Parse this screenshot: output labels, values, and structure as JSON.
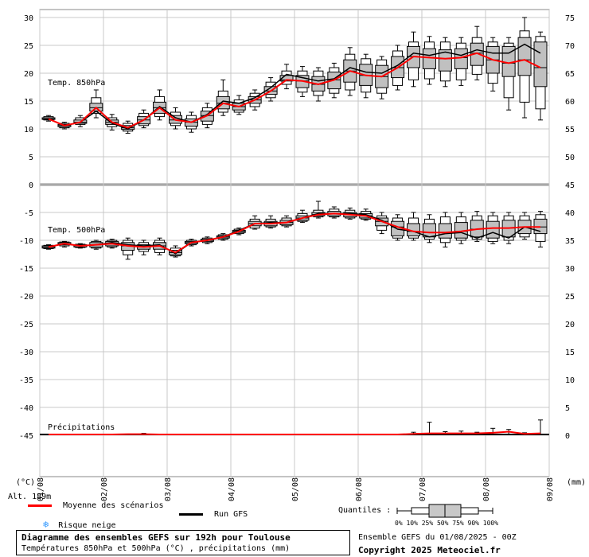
{
  "chart_data": {
    "type": "ensemble boxplot",
    "x_dates": [
      "01/08",
      "02/08",
      "03/08",
      "04/08",
      "05/08",
      "06/08",
      "07/08",
      "08/08",
      "09/08"
    ],
    "left_unit": "(°C)",
    "right_unit": "(mm)",
    "left_ticks": [
      "30",
      "25",
      "20",
      "15",
      "10",
      "5",
      "0",
      "-5",
      "-10",
      "-15",
      "-20",
      "-25",
      "-30",
      "-35",
      "-40",
      "-45"
    ],
    "right_ticks_temp850": [
      "75",
      "70",
      "65",
      "60",
      "55",
      "50",
      "45"
    ],
    "right_ticks_500": [
      "40",
      "35",
      "30",
      "25",
      "20",
      "15",
      "10",
      "5",
      "0"
    ],
    "panel_labels": [
      "Temp. 850hPa",
      "Temp. 500hPa",
      "Précipitations"
    ],
    "t850": {
      "mean": [
        11.8,
        10.6,
        11.2,
        13.8,
        11.2,
        10.2,
        11.6,
        13.8,
        11.6,
        11.2,
        12.4,
        14.6,
        14.0,
        15.2,
        16.8,
        18.8,
        18.6,
        18.0,
        18.8,
        20.4,
        19.6,
        19.4,
        21.0,
        23.0,
        22.8,
        22.6,
        22.8,
        23.6,
        22.4,
        21.8,
        22.4,
        21.0
      ],
      "gfs": [
        11.8,
        10.6,
        11.2,
        13.2,
        11.0,
        10.0,
        11.6,
        14.0,
        12.0,
        11.2,
        12.6,
        15.0,
        14.6,
        15.6,
        17.4,
        19.8,
        19.2,
        18.6,
        19.0,
        21.0,
        20.2,
        20.0,
        21.4,
        23.6,
        23.2,
        23.8,
        23.2,
        24.2,
        23.6,
        23.6,
        25.2,
        23.6
      ],
      "p0": [
        11.4,
        10.0,
        10.4,
        12.0,
        9.8,
        9.2,
        10.2,
        11.6,
        10.0,
        9.4,
        10.2,
        12.4,
        12.6,
        13.4,
        15.0,
        17.2,
        15.8,
        15.0,
        15.6,
        16.0,
        15.6,
        15.4,
        17.0,
        17.6,
        18.0,
        17.6,
        17.8,
        18.8,
        16.8,
        13.4,
        12.0,
        11.6
      ],
      "p10": [
        11.6,
        10.2,
        10.8,
        12.8,
        10.4,
        9.6,
        10.6,
        12.2,
        10.6,
        10.0,
        10.8,
        13.0,
        13.0,
        14.0,
        15.6,
        18.0,
        16.6,
        16.0,
        16.4,
        17.0,
        16.6,
        16.4,
        17.8,
        18.8,
        19.0,
        18.6,
        18.8,
        19.8,
        18.2,
        15.6,
        14.8,
        13.6
      ],
      "p25": [
        11.7,
        10.4,
        11.0,
        13.2,
        10.8,
        9.9,
        10.9,
        12.8,
        11.0,
        10.5,
        11.4,
        13.6,
        13.4,
        14.6,
        16.2,
        18.6,
        17.4,
        16.8,
        17.2,
        18.4,
        17.8,
        17.4,
        19.2,
        21.0,
        20.8,
        20.4,
        20.8,
        21.4,
        20.0,
        19.4,
        19.6,
        17.6
      ],
      "p50": [
        11.8,
        10.6,
        11.2,
        13.8,
        11.2,
        10.2,
        11.6,
        13.8,
        11.6,
        11.2,
        12.4,
        14.6,
        14.0,
        15.2,
        16.8,
        18.8,
        18.6,
        18.0,
        18.8,
        20.4,
        19.6,
        19.4,
        21.0,
        23.0,
        22.8,
        22.6,
        22.8,
        23.6,
        22.4,
        21.8,
        22.4,
        21.0
      ],
      "p75": [
        12.0,
        10.8,
        11.6,
        14.6,
        11.6,
        10.6,
        12.2,
        14.8,
        12.4,
        11.8,
        13.2,
        15.8,
        14.6,
        15.8,
        17.6,
        19.6,
        19.6,
        19.4,
        20.2,
        22.4,
        21.6,
        21.4,
        23.0,
        24.8,
        24.4,
        24.2,
        24.4,
        25.4,
        24.8,
        24.8,
        26.4,
        25.6
      ],
      "p90": [
        12.2,
        11.0,
        12.0,
        15.6,
        12.0,
        11.0,
        12.8,
        15.8,
        13.0,
        12.4,
        13.8,
        16.8,
        15.2,
        16.4,
        18.4,
        20.4,
        20.4,
        20.4,
        21.0,
        23.4,
        22.6,
        22.4,
        24.0,
        25.6,
        25.6,
        25.6,
        25.4,
        26.4,
        25.6,
        25.4,
        27.6,
        26.6
      ],
      "p100": [
        12.4,
        11.2,
        12.4,
        17.0,
        12.6,
        11.4,
        13.4,
        17.0,
        13.8,
        13.0,
        14.6,
        18.8,
        16.0,
        17.0,
        19.2,
        21.6,
        21.2,
        21.0,
        21.8,
        24.6,
        23.4,
        23.0,
        25.0,
        27.4,
        26.6,
        26.4,
        26.4,
        28.4,
        26.4,
        26.4,
        30.0,
        27.4
      ]
    },
    "t500": {
      "mean": [
        -11.2,
        -10.6,
        -11.0,
        -10.8,
        -10.6,
        -11.0,
        -11.2,
        -11.0,
        -12.2,
        -10.4,
        -10.0,
        -9.4,
        -8.4,
        -7.0,
        -7.0,
        -6.8,
        -6.0,
        -5.4,
        -5.2,
        -5.4,
        -5.6,
        -6.6,
        -7.6,
        -8.4,
        -8.6,
        -8.6,
        -8.4,
        -8.0,
        -7.8,
        -7.8,
        -7.6,
        -7.6
      ],
      "gfs": [
        -11.2,
        -10.6,
        -11.0,
        -10.8,
        -10.4,
        -10.8,
        -11.0,
        -10.8,
        -12.4,
        -10.4,
        -10.0,
        -9.4,
        -8.2,
        -7.0,
        -6.8,
        -6.8,
        -6.0,
        -5.2,
        -5.2,
        -5.2,
        -5.4,
        -6.4,
        -8.0,
        -8.4,
        -9.4,
        -8.8,
        -8.6,
        -9.6,
        -8.6,
        -9.6,
        -7.6,
        -8.4
      ],
      "p0": [
        -11.6,
        -11.2,
        -11.4,
        -11.6,
        -11.4,
        -13.4,
        -12.6,
        -12.6,
        -13.0,
        -11.0,
        -10.6,
        -10.0,
        -9.0,
        -8.0,
        -7.8,
        -7.6,
        -6.8,
        -6.0,
        -6.0,
        -6.2,
        -6.4,
        -8.8,
        -10.0,
        -10.0,
        -10.4,
        -11.2,
        -10.6,
        -10.2,
        -10.6,
        -10.6,
        -9.8,
        -11.2
      ],
      "p10": [
        -11.5,
        -11.0,
        -11.3,
        -11.4,
        -11.2,
        -12.6,
        -12.0,
        -12.2,
        -12.8,
        -10.8,
        -10.4,
        -9.8,
        -8.8,
        -7.8,
        -7.6,
        -7.4,
        -6.6,
        -5.8,
        -5.8,
        -6.0,
        -6.2,
        -8.2,
        -9.6,
        -9.6,
        -9.8,
        -10.4,
        -10.0,
        -9.8,
        -10.2,
        -10.0,
        -9.4,
        -10.2
      ],
      "p25": [
        -11.4,
        -10.8,
        -11.2,
        -11.2,
        -11.0,
        -11.8,
        -11.6,
        -11.6,
        -12.6,
        -10.6,
        -10.2,
        -9.6,
        -8.6,
        -7.4,
        -7.4,
        -7.2,
        -6.4,
        -5.6,
        -5.6,
        -5.8,
        -6.0,
        -7.4,
        -9.2,
        -9.2,
        -9.4,
        -9.6,
        -9.6,
        -9.4,
        -9.6,
        -9.4,
        -8.8,
        -8.8
      ],
      "p50": [
        -11.2,
        -10.6,
        -11.0,
        -10.8,
        -10.6,
        -11.0,
        -11.2,
        -11.0,
        -12.2,
        -10.4,
        -10.0,
        -9.4,
        -8.4,
        -7.0,
        -7.0,
        -6.8,
        -6.0,
        -5.4,
        -5.2,
        -5.4,
        -5.6,
        -6.6,
        -7.6,
        -8.4,
        -8.6,
        -8.6,
        -8.4,
        -8.0,
        -7.8,
        -7.8,
        -7.6,
        -7.6
      ],
      "p75": [
        -11.0,
        -10.4,
        -10.8,
        -10.4,
        -10.2,
        -10.4,
        -10.8,
        -10.4,
        -11.8,
        -10.2,
        -9.8,
        -9.2,
        -8.2,
        -6.6,
        -6.6,
        -6.4,
        -5.6,
        -5.0,
        -4.8,
        -5.0,
        -5.2,
        -6.0,
        -6.6,
        -7.0,
        -7.0,
        -7.0,
        -6.8,
        -6.4,
        -6.6,
        -6.4,
        -6.4,
        -6.2
      ],
      "p90": [
        -10.9,
        -10.3,
        -10.7,
        -10.2,
        -10.0,
        -10.0,
        -10.4,
        -10.0,
        -11.4,
        -10.0,
        -9.6,
        -9.0,
        -8.0,
        -6.2,
        -6.2,
        -6.0,
        -5.2,
        -4.6,
        -4.4,
        -4.6,
        -4.8,
        -5.6,
        -6.0,
        -6.0,
        -6.2,
        -5.8,
        -5.8,
        -5.6,
        -5.6,
        -5.6,
        -5.6,
        -5.4
      ],
      "p100": [
        -10.8,
        -10.2,
        -10.6,
        -10.0,
        -9.8,
        -9.6,
        -10.0,
        -9.6,
        -11.0,
        -9.8,
        -9.4,
        -8.8,
        -7.8,
        -5.6,
        -5.6,
        -5.6,
        -4.6,
        -3.0,
        -4.0,
        -4.2,
        -4.4,
        -5.0,
        -5.4,
        -5.0,
        -5.4,
        -5.0,
        -5.0,
        -4.8,
        -5.0,
        -5.0,
        -5.0,
        -4.8
      ]
    },
    "precip_mm": {
      "mean": [
        0,
        0,
        0,
        0,
        0,
        0.05,
        0.05,
        0,
        0,
        0,
        0,
        0,
        0,
        0,
        0,
        0,
        0,
        0,
        0,
        0,
        0,
        0,
        0,
        0.1,
        0.2,
        0.2,
        0.2,
        0.2,
        0.3,
        0.5,
        0.1,
        0.2
      ],
      "max": [
        0,
        0,
        0,
        0,
        0,
        0.1,
        0.2,
        0,
        0,
        0,
        0,
        0,
        0,
        0,
        0,
        0,
        0,
        0,
        0,
        0,
        0,
        0,
        0,
        0.4,
        2.2,
        0.5,
        0.6,
        0.4,
        1.1,
        0.9,
        0.3,
        2.6
      ]
    }
  },
  "altitude": "Alt. 189m",
  "legend": {
    "mean_label": "Moyenne des scénarios",
    "gfs_label": "Run GFS",
    "snow_label": "Risque neige",
    "quantiles_label": "Quantiles :",
    "quantile_ticks": "0%  10% 25% 50% 75% 90% 100%",
    "snow_glyph": "❄",
    "mean_color": "#ff0000",
    "gfs_color": "#000000",
    "snow_color": "#3399ff"
  },
  "title": {
    "main": "Diagramme des ensembles GEFS sur 192h pour Toulouse",
    "sub": "Températures 850hPa et 500hPa (°C) , précipitations (mm)"
  },
  "footer": {
    "run": "Ensemble GEFS du 01/08/2025 - 00Z",
    "copyright": "Copyright 2025 Meteociel.fr"
  }
}
